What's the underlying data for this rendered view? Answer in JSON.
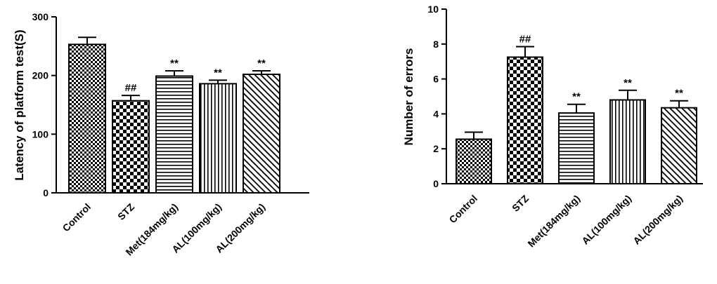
{
  "chart_data": [
    {
      "type": "bar",
      "categories": [
        "Control",
        "STZ",
        "Met(184mg/kg)",
        "AL(100mg/kg)",
        "AL(200mg/kg)"
      ],
      "values": [
        253,
        157,
        199,
        186,
        202
      ],
      "errors": [
        12,
        9,
        9,
        6,
        6
      ],
      "annotations": [
        "",
        "##",
        "**",
        "**",
        "**"
      ],
      "patterns": [
        "checker-fine",
        "checker-large",
        "horizontal",
        "vertical",
        "diagonal"
      ],
      "title": "",
      "xlabel": "",
      "ylabel": "Latency of platform test(S)",
      "ylim": [
        0,
        300
      ],
      "yticks": [
        0,
        100,
        200,
        300
      ],
      "grid": false
    },
    {
      "type": "bar",
      "categories": [
        "Control",
        "STZ",
        "Met(184mg/kg)",
        "AL(100mg/kg)",
        "AL(200mg/kg)"
      ],
      "values": [
        2.55,
        7.25,
        4.05,
        4.8,
        4.35
      ],
      "errors": [
        0.4,
        0.6,
        0.5,
        0.55,
        0.4
      ],
      "annotations": [
        "",
        "##",
        "**",
        "**",
        "**"
      ],
      "patterns": [
        "checker-fine",
        "checker-large",
        "horizontal",
        "vertical",
        "diagonal"
      ],
      "title": "",
      "xlabel": "",
      "ylabel": "Number of errors",
      "ylim": [
        0,
        10
      ],
      "yticks": [
        0,
        2,
        4,
        6,
        8,
        10
      ],
      "grid": false
    }
  ]
}
